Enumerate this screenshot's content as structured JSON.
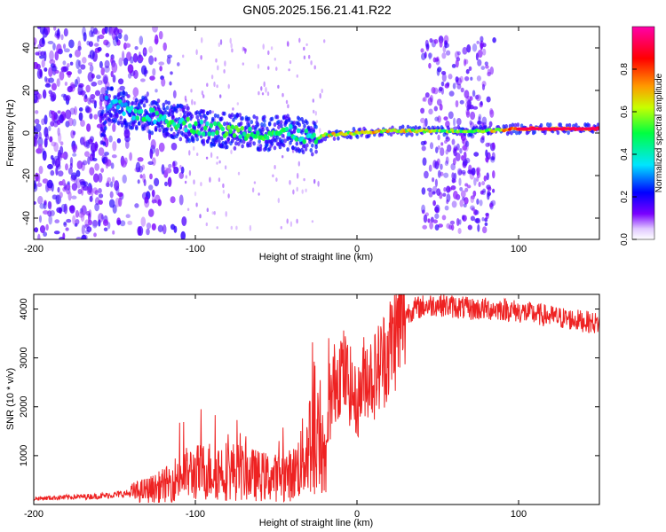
{
  "title": "GN05.2025.156.21.41.R22",
  "chart_data": [
    {
      "type": "heatmap",
      "xlabel": "Height of straight line (km)",
      "ylabel": "Frequency (Hz)",
      "xlim": [
        -200,
        150
      ],
      "ylim": [
        -50,
        50
      ],
      "xticks": [
        -200,
        -100,
        0,
        100
      ],
      "yticks": [
        -40,
        -20,
        0,
        20,
        40
      ],
      "colorbar": {
        "label": "Normalized spectral amplitude",
        "range": [
          0,
          1
        ],
        "ticks": [
          "0.0",
          "0.2",
          "0.4",
          "0.6",
          "0.8"
        ],
        "colormap": [
          "#ffffff",
          "#7a00ff",
          "#0000ff",
          "#00e5ff",
          "#00ff40",
          "#c8ff00",
          "#ff9900",
          "#ff0000",
          "#ff00aa"
        ]
      },
      "ridge": [
        {
          "x": -155,
          "f": 14,
          "amp": 0.35
        },
        {
          "x": -140,
          "f": 10,
          "amp": 0.45
        },
        {
          "x": -120,
          "f": 7,
          "amp": 0.5
        },
        {
          "x": -100,
          "f": 3,
          "amp": 0.5
        },
        {
          "x": -80,
          "f": 1,
          "amp": 0.55
        },
        {
          "x": -60,
          "f": 0,
          "amp": 0.5
        },
        {
          "x": -40,
          "f": 0,
          "amp": 0.5
        },
        {
          "x": -25,
          "f": -3,
          "amp": 0.45
        },
        {
          "x": -20,
          "f": -1,
          "amp": 0.7
        },
        {
          "x": 0,
          "f": 0,
          "amp": 0.7
        },
        {
          "x": 20,
          "f": 1,
          "amp": 0.7
        },
        {
          "x": 40,
          "f": 1,
          "amp": 0.65
        },
        {
          "x": 60,
          "f": 1,
          "amp": 0.6
        },
        {
          "x": 80,
          "f": 1,
          "amp": 0.6
        },
        {
          "x": 100,
          "f": 2,
          "amp": 0.9
        },
        {
          "x": 150,
          "f": 2,
          "amp": 0.95
        }
      ]
    },
    {
      "type": "line",
      "xlabel": "Height of straight line (km)",
      "ylabel": "SNR (10 * v/v)",
      "xlim": [
        -200,
        150
      ],
      "ylim": [
        0,
        4300
      ],
      "xticks": [
        -200,
        -100,
        0,
        100
      ],
      "yticks": [
        1000,
        2000,
        3000,
        4000
      ],
      "color": "#ee2222",
      "series": [
        {
          "x": [
            -200,
            -180,
            -160,
            -140,
            -125,
            -115,
            -110,
            -100,
            -90,
            -80,
            -70,
            -60,
            -50,
            -45,
            -40,
            -35,
            -30,
            -25,
            -22,
            -20,
            -15,
            -10,
            -5,
            0,
            5,
            10,
            15,
            20,
            25,
            30,
            35,
            40,
            50,
            60,
            70,
            80,
            90,
            100,
            110,
            120,
            130,
            140,
            150
          ],
          "y": [
            120,
            150,
            170,
            230,
            330,
            450,
            600,
            650,
            700,
            700,
            650,
            580,
            550,
            600,
            600,
            850,
            1200,
            1700,
            1500,
            900,
            2400,
            2800,
            2500,
            2000,
            2700,
            2600,
            2900,
            3200,
            3600,
            3900,
            4000,
            4050,
            4100,
            4050,
            4000,
            4000,
            4000,
            3950,
            3900,
            3850,
            3800,
            3750,
            3700
          ]
        }
      ]
    }
  ]
}
